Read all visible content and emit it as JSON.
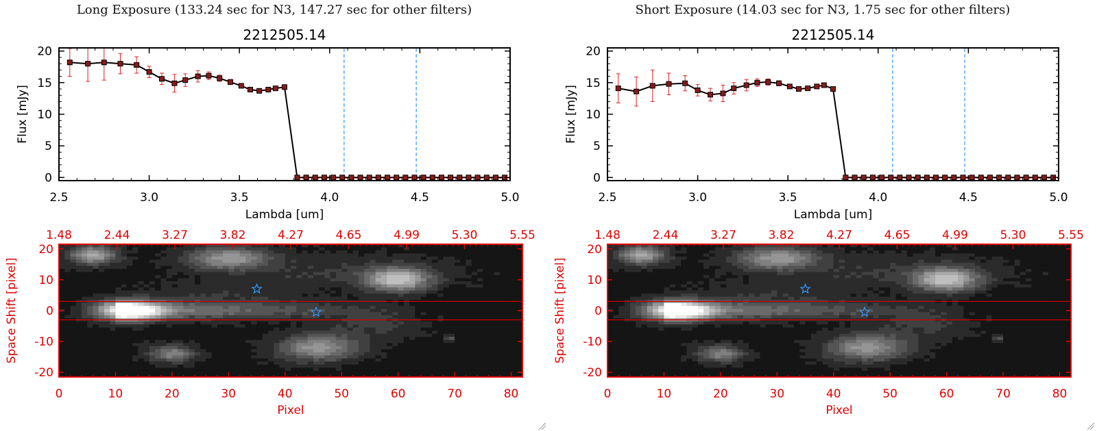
{
  "colors": {
    "spectrum_line": "#000000",
    "spectrum_marker": "#8b1a1a",
    "error_bar": "#e02020",
    "filter_line": "#3399ff",
    "image_axis": "#e00000",
    "aperture_line": "#d00000",
    "source_marker": "#3399ff"
  },
  "panels": [
    {
      "title": "Long Exposure (133.24 sec for N3, 147.27 sec for other filters)",
      "chart_data": [
        {
          "type": "line",
          "title": "2212505.14",
          "xlabel": "Lambda [um]",
          "ylabel": "Flux [mJy]",
          "xlim": [
            2.5,
            5.0
          ],
          "ylim": [
            -0.5,
            20.5
          ],
          "xticks": [
            "2.5",
            "3.0",
            "3.5",
            "4.0",
            "4.5",
            "5.0"
          ],
          "yticks": [
            "0",
            "5",
            "10",
            "15",
            "20"
          ],
          "filter_lines_x": [
            4.08,
            4.48
          ],
          "x": [
            2.56,
            2.66,
            2.75,
            2.84,
            2.93,
            3.0,
            3.07,
            3.14,
            3.2,
            3.27,
            3.33,
            3.39,
            3.45,
            3.51,
            3.56,
            3.61,
            3.66,
            3.7,
            3.75,
            3.82,
            3.87,
            3.92,
            3.97,
            4.02,
            4.07,
            4.12,
            4.17,
            4.22,
            4.27,
            4.32,
            4.37,
            4.42,
            4.47,
            4.52,
            4.57,
            4.62,
            4.67,
            4.72,
            4.77,
            4.82,
            4.87,
            4.92,
            4.97
          ],
          "y": [
            18.2,
            18.0,
            18.2,
            18.0,
            17.8,
            16.7,
            15.6,
            14.9,
            15.4,
            16.0,
            16.1,
            15.7,
            15.1,
            14.5,
            13.9,
            13.7,
            13.9,
            14.1,
            14.3,
            0,
            0,
            0,
            0,
            0,
            0,
            0,
            0,
            0,
            0,
            0,
            0,
            0,
            0,
            0,
            0,
            0,
            0,
            0,
            0,
            0,
            0,
            0,
            0
          ],
          "yerr": [
            2.2,
            2.8,
            2.8,
            1.6,
            1.3,
            0.9,
            0.9,
            1.4,
            1.0,
            0.9,
            0.6,
            0.5,
            0.4,
            0.3,
            0.3,
            0.3,
            0.3,
            0.3,
            0.3,
            0,
            0,
            0,
            0,
            0,
            0,
            0,
            0,
            0,
            0,
            0,
            0,
            0,
            0,
            0,
            0,
            0,
            0,
            0,
            0,
            0,
            0,
            0,
            0
          ]
        },
        {
          "type": "heatmap",
          "xlabel": "Pixel",
          "ylabel": "Space Shift [pixel]",
          "xlim": [
            0,
            82
          ],
          "ylim": [
            -21.5,
            21.5
          ],
          "xticks": [
            "0",
            "10",
            "20",
            "30",
            "40",
            "50",
            "60",
            "70",
            "80"
          ],
          "yticks": [
            "20",
            "10",
            "0",
            "-10",
            "-20"
          ],
          "top_ticks": [
            "1.48",
            "2.44",
            "3.27",
            "3.82",
            "4.27",
            "4.65",
            "4.99",
            "5.30",
            "5.55"
          ],
          "aperture_y": [
            3,
            -3
          ],
          "star_markers": [
            [
              35,
              7
            ],
            [
              45.5,
              -0.5
            ]
          ]
        }
      ]
    },
    {
      "title": "Short Exposure (14.03 sec for N3, 1.75 sec for other filters)",
      "chart_data": [
        {
          "type": "line",
          "title": "2212505.14",
          "xlabel": "Lambda [um]",
          "ylabel": "Flux [mJy]",
          "xlim": [
            2.5,
            5.0
          ],
          "ylim": [
            -0.5,
            20.5
          ],
          "xticks": [
            "2.5",
            "3.0",
            "3.5",
            "4.0",
            "4.5",
            "5.0"
          ],
          "yticks": [
            "0",
            "5",
            "10",
            "15",
            "20"
          ],
          "filter_lines_x": [
            4.08,
            4.48
          ],
          "x": [
            2.56,
            2.66,
            2.75,
            2.84,
            2.93,
            3.0,
            3.07,
            3.14,
            3.2,
            3.27,
            3.33,
            3.39,
            3.45,
            3.51,
            3.56,
            3.61,
            3.66,
            3.7,
            3.75,
            3.82,
            3.87,
            3.92,
            3.97,
            4.02,
            4.07,
            4.12,
            4.17,
            4.22,
            4.27,
            4.32,
            4.37,
            4.42,
            4.47,
            4.52,
            4.57,
            4.62,
            4.67,
            4.72,
            4.77,
            4.82,
            4.87,
            4.92,
            4.97
          ],
          "y": [
            14.1,
            13.6,
            14.5,
            14.8,
            14.9,
            13.8,
            13.1,
            13.3,
            14.1,
            14.6,
            15.0,
            15.1,
            14.9,
            14.4,
            14.0,
            14.1,
            14.4,
            14.6,
            14.0,
            0,
            0,
            0,
            0,
            0,
            0,
            0,
            0,
            0,
            0,
            0,
            0,
            0,
            0,
            0,
            0,
            0,
            0,
            0,
            0,
            0,
            0,
            0,
            0
          ],
          "yerr": [
            2.3,
            2.3,
            2.5,
            1.7,
            1.2,
            0.9,
            1.0,
            1.3,
            0.9,
            0.9,
            0.6,
            0.5,
            0.4,
            0.3,
            0.3,
            0.3,
            0.3,
            0.3,
            0.3,
            0,
            0,
            0,
            0,
            0,
            0,
            0,
            0,
            0,
            0,
            0,
            0,
            0,
            0,
            0,
            0,
            0,
            0,
            0,
            0,
            0,
            0,
            0,
            0
          ]
        },
        {
          "type": "heatmap",
          "xlabel": "Pixel",
          "ylabel": "Space Shift [pixel]",
          "xlim": [
            0,
            82
          ],
          "ylim": [
            -21.5,
            21.5
          ],
          "xticks": [
            "0",
            "10",
            "20",
            "30",
            "40",
            "50",
            "60",
            "70",
            "80"
          ],
          "yticks": [
            "20",
            "10",
            "0",
            "-10",
            "-20"
          ],
          "top_ticks": [
            "1.48",
            "2.44",
            "3.27",
            "3.82",
            "4.27",
            "4.65",
            "4.99",
            "5.30",
            "5.55"
          ],
          "aperture_y": [
            3,
            -3
          ],
          "star_markers": [
            [
              35,
              7
            ],
            [
              45.5,
              -0.5
            ]
          ]
        }
      ]
    }
  ]
}
